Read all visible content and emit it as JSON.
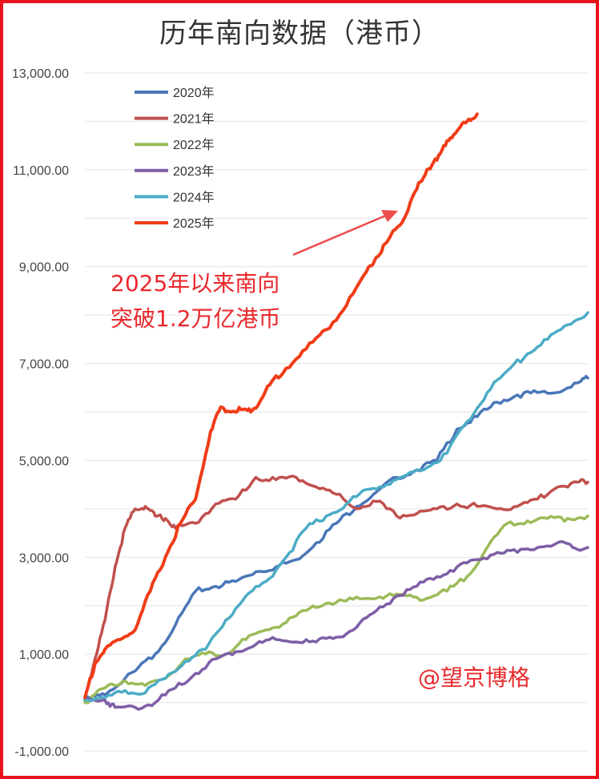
{
  "chart_data": {
    "type": "line",
    "title": "历年南向数据（港币）",
    "xlabel": "",
    "ylabel": "",
    "ylim": [
      -1000,
      13000
    ],
    "yticks": [
      13000,
      11000,
      9000,
      7000,
      5000,
      3000,
      1000,
      -1000
    ],
    "ytick_labels": [
      "13,000.00",
      "11,000.00",
      "9,000.00",
      "7,000.00",
      "5,000.00",
      "3,000.00",
      "1,000.00",
      "-1,000.00"
    ],
    "grid": true,
    "legend_position": "top-left",
    "x_domain": [
      0,
      100
    ],
    "series": [
      {
        "name": "2020年",
        "color": "#4a76b8",
        "x": [
          0,
          3,
          6,
          10,
          14,
          18,
          22,
          26,
          30,
          34,
          38,
          42,
          46,
          50,
          54,
          58,
          62,
          66,
          70,
          74,
          78,
          82,
          86,
          90,
          94,
          98,
          100
        ],
        "values": [
          50,
          150,
          300,
          650,
          1000,
          1600,
          2300,
          2400,
          2500,
          2700,
          2800,
          2950,
          3300,
          3700,
          4050,
          4350,
          4650,
          4800,
          5000,
          5650,
          5900,
          6200,
          6350,
          6400,
          6400,
          6600,
          6700
        ]
      },
      {
        "name": "2021年",
        "color": "#c0504d",
        "x": [
          0,
          2,
          4,
          6,
          8,
          10,
          12,
          14,
          16,
          18,
          22,
          26,
          30,
          34,
          38,
          42,
          46,
          50,
          54,
          58,
          62,
          66,
          70,
          74,
          78,
          82,
          86,
          90,
          94,
          98,
          100
        ],
        "values": [
          100,
          900,
          1700,
          2800,
          3600,
          4000,
          4050,
          3850,
          3800,
          3600,
          3700,
          4100,
          4200,
          4650,
          4600,
          4650,
          4450,
          4300,
          4000,
          4150,
          3850,
          3900,
          4000,
          4100,
          4050,
          4000,
          4050,
          4200,
          4450,
          4550,
          4550
        ]
      },
      {
        "name": "2022年",
        "color": "#9bbb59",
        "x": [
          0,
          4,
          8,
          12,
          16,
          20,
          24,
          28,
          32,
          36,
          40,
          44,
          48,
          52,
          56,
          60,
          64,
          68,
          72,
          76,
          80,
          84,
          88,
          92,
          96,
          100
        ],
        "values": [
          0,
          300,
          450,
          350,
          500,
          900,
          1000,
          1000,
          1300,
          1500,
          1650,
          1900,
          2050,
          2100,
          2150,
          2200,
          2200,
          2150,
          2300,
          2600,
          3200,
          3700,
          3750,
          3800,
          3800,
          3850
        ]
      },
      {
        "name": "2023年",
        "color": "#7e5ea6",
        "x": [
          0,
          4,
          6,
          10,
          14,
          18,
          22,
          26,
          30,
          34,
          38,
          42,
          46,
          50,
          54,
          58,
          62,
          66,
          70,
          74,
          78,
          82,
          86,
          90,
          94,
          97,
          100
        ],
        "values": [
          50,
          50,
          -100,
          -100,
          0,
          300,
          600,
          900,
          1050,
          1200,
          1300,
          1250,
          1250,
          1350,
          1550,
          1900,
          2200,
          2400,
          2600,
          2800,
          2950,
          3100,
          3100,
          3200,
          3300,
          3200,
          3200
        ]
      },
      {
        "name": "2024年",
        "color": "#4bacc6",
        "x": [
          0,
          4,
          8,
          12,
          16,
          20,
          24,
          28,
          32,
          36,
          40,
          44,
          48,
          52,
          56,
          60,
          64,
          68,
          72,
          76,
          80,
          84,
          88,
          92,
          96,
          100
        ],
        "values": [
          50,
          100,
          250,
          200,
          500,
          850,
          1100,
          1700,
          2200,
          2500,
          3000,
          3600,
          3850,
          4100,
          4400,
          4500,
          4700,
          4850,
          5150,
          5800,
          6400,
          6850,
          7200,
          7500,
          7800,
          8050
        ]
      },
      {
        "name": "2025年",
        "color": "#f03c18",
        "x": [
          0,
          2,
          4,
          7,
          10,
          13,
          16,
          19,
          22,
          25,
          27,
          29,
          31,
          33,
          35,
          37,
          40,
          44,
          48,
          52,
          56,
          58,
          60,
          62,
          64,
          66,
          68,
          70,
          72,
          74,
          76,
          78
        ],
        "values": [
          100,
          800,
          1100,
          1300,
          1500,
          2300,
          3000,
          3700,
          4200,
          5600,
          6100,
          6000,
          6050,
          6000,
          6250,
          6600,
          6900,
          7300,
          7700,
          8200,
          8900,
          9200,
          9500,
          9800,
          10100,
          10600,
          11000,
          11200,
          11600,
          11800,
          12000,
          12150
        ]
      }
    ],
    "annotation": [
      "2025年以来南向",
      "突破1.2万亿港币"
    ],
    "watermark": "@望京博格"
  }
}
